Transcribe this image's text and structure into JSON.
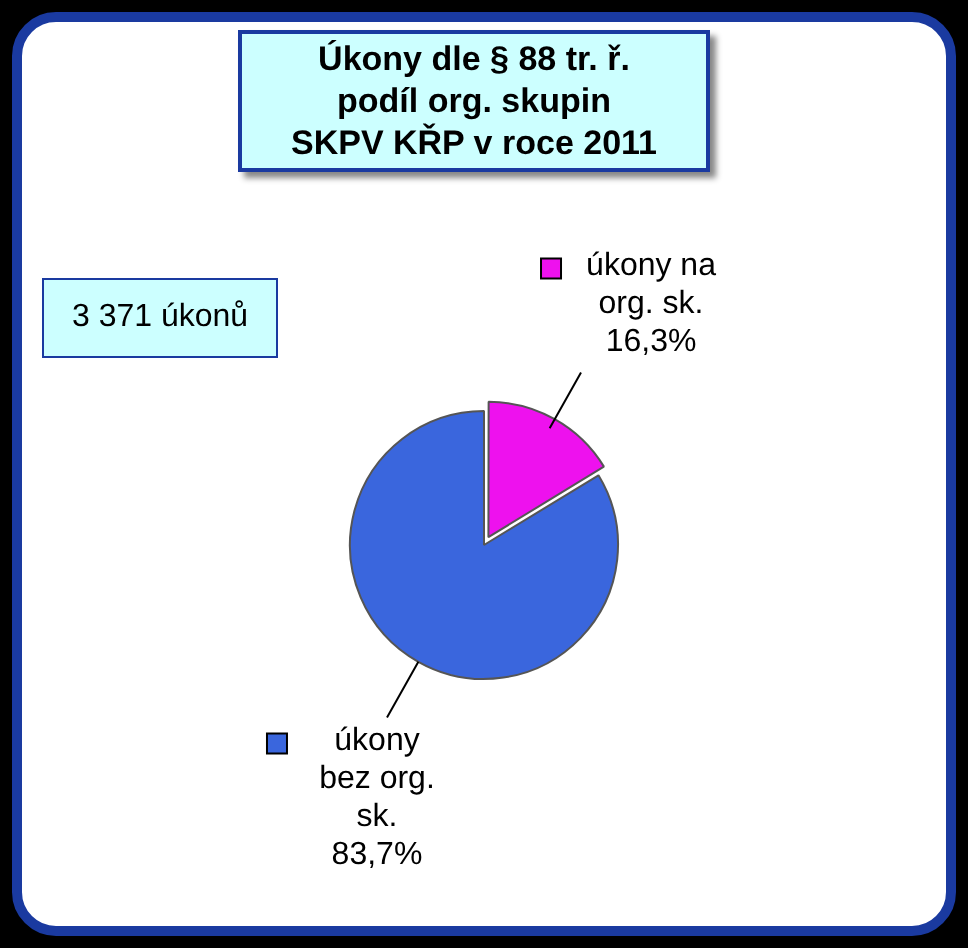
{
  "chart_data": {
    "type": "pie",
    "title": "Úkony dle § 88 tr. ř.\npodíl org. skupin\nSKPV KŘP v roce 2011",
    "categories": [
      "úkony na org. sk.",
      "úkony bez org. sk."
    ],
    "values": [
      16.3,
      83.7
    ],
    "value_labels": [
      "16,3%",
      "83,7%"
    ],
    "colors": [
      "#ee11ee",
      "#3a66dd"
    ],
    "annotations": [
      "3 371 úkonů"
    ],
    "legend": "right"
  }
}
